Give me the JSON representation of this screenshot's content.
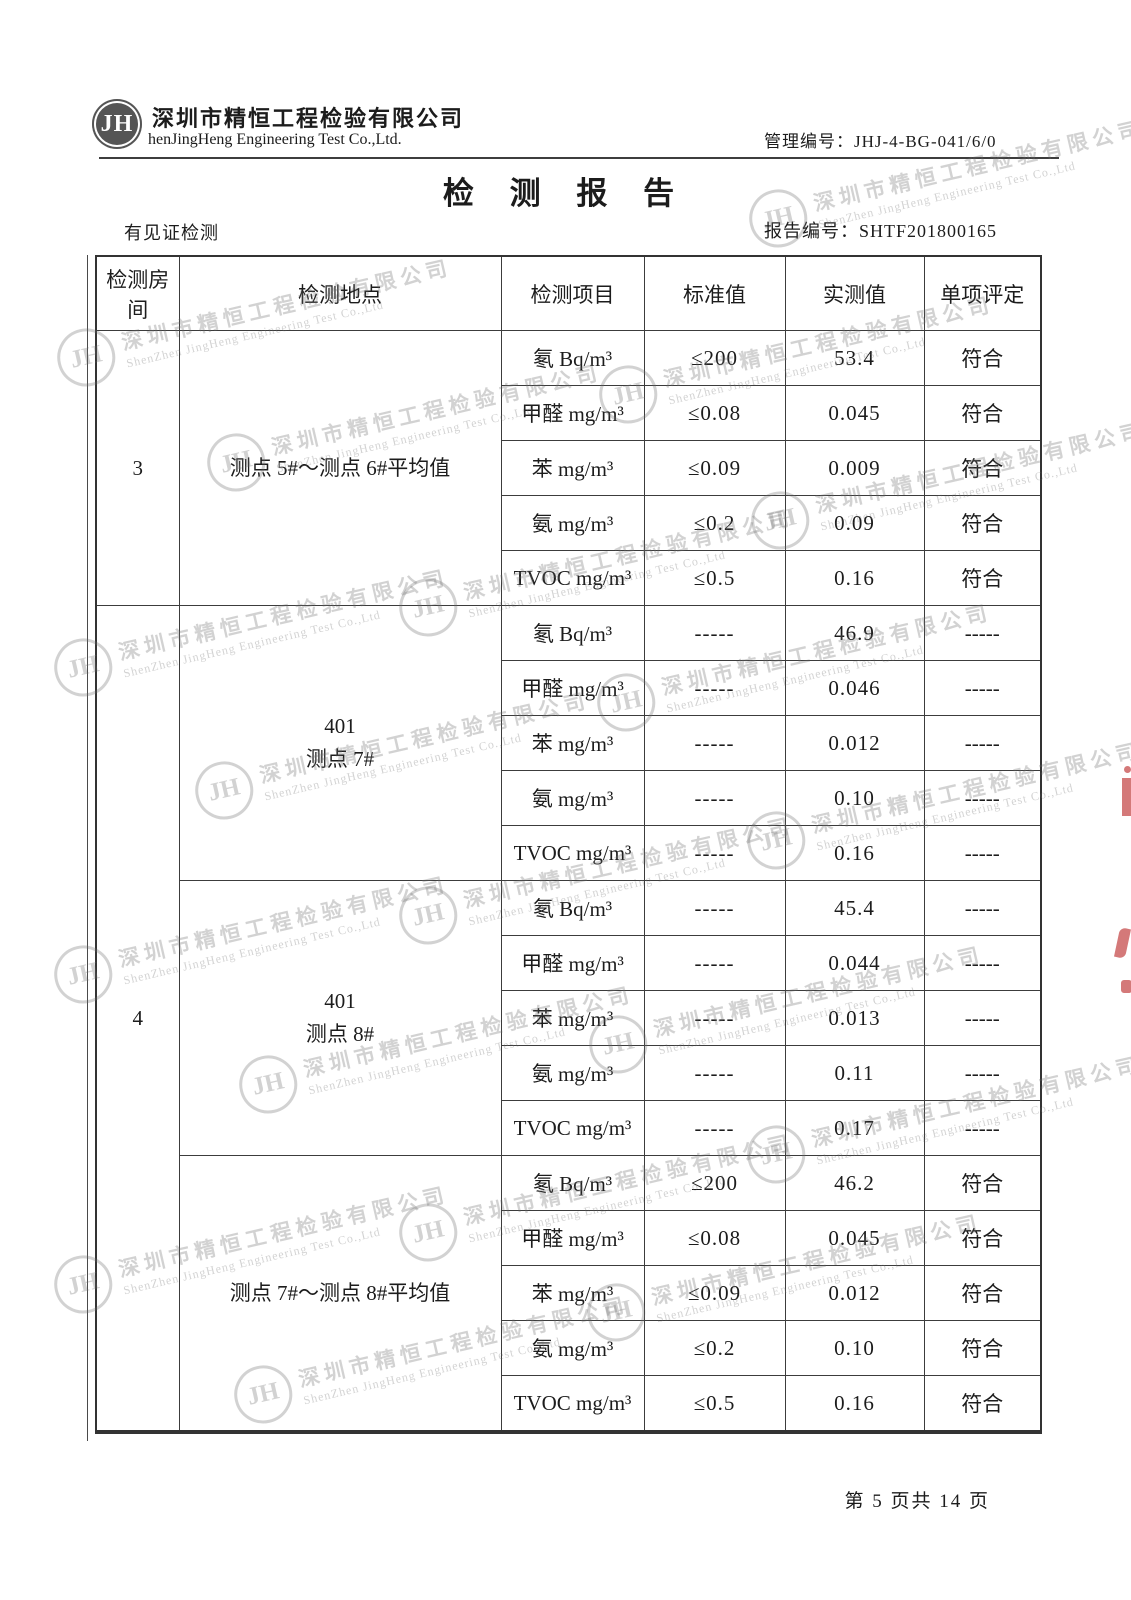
{
  "header": {
    "logo": "JH",
    "company_cn": "深圳市精恒工程检验有限公司",
    "company_en": "henJingHeng Engineering Test Co.,Ltd.",
    "management_label": "管理编号：",
    "management_no": "JHJ-4-BG-041/6/0",
    "title": "检 测 报 告",
    "witness": "有见证检测",
    "report_no_label": "报告编号：",
    "report_no": "SHTF201800165"
  },
  "table": {
    "headers": [
      "检测房间",
      "检测地点",
      "检测项目",
      "标准值",
      "实测值",
      "单项评定"
    ],
    "sections": [
      {
        "room": "3",
        "location": [
          "测点 5#～测点 6#平均值"
        ],
        "rows": [
          {
            "item": "氡 Bq/m³",
            "standard": "≤200",
            "measured": "53.4",
            "verdict": "符合"
          },
          {
            "item": "甲醛 mg/m³",
            "standard": "≤0.08",
            "measured": "0.045",
            "verdict": "符合"
          },
          {
            "item": "苯 mg/m³",
            "standard": "≤0.09",
            "measured": "0.009",
            "verdict": "符合"
          },
          {
            "item": "氨 mg/m³",
            "standard": "≤0.2",
            "measured": "0.09",
            "verdict": "符合"
          },
          {
            "item": "TVOC mg/m³",
            "standard": "≤0.5",
            "measured": "0.16",
            "verdict": "符合"
          }
        ]
      },
      {
        "room": "4",
        "location": [
          "401",
          "测点 7#"
        ],
        "rows": [
          {
            "item": "氡 Bq/m³",
            "standard": "-----",
            "measured": "46.9",
            "verdict": "-----"
          },
          {
            "item": "甲醛 mg/m³",
            "standard": "-----",
            "measured": "0.046",
            "verdict": "-----"
          },
          {
            "item": "苯 mg/m³",
            "standard": "-----",
            "measured": "0.012",
            "verdict": "-----"
          },
          {
            "item": "氨 mg/m³",
            "standard": "-----",
            "measured": "0.10",
            "verdict": "-----"
          },
          {
            "item": "TVOC mg/m³",
            "standard": "-----",
            "measured": "0.16",
            "verdict": "-----"
          }
        ]
      },
      {
        "room": "",
        "location": [
          "401",
          "测点 8#"
        ],
        "rows": [
          {
            "item": "氡 Bq/m³",
            "standard": "-----",
            "measured": "45.4",
            "verdict": "-----"
          },
          {
            "item": "甲醛 mg/m³",
            "standard": "-----",
            "measured": "0.044",
            "verdict": "-----"
          },
          {
            "item": "苯 mg/m³",
            "standard": "-----",
            "measured": "0.013",
            "verdict": "-----"
          },
          {
            "item": "氨 mg/m³",
            "standard": "-----",
            "measured": "0.11",
            "verdict": "-----"
          },
          {
            "item": "TVOC mg/m³",
            "standard": "-----",
            "measured": "0.17",
            "verdict": "-----"
          }
        ]
      },
      {
        "room": "",
        "location": [
          "测点 7#～测点 8#平均值"
        ],
        "rows": [
          {
            "item": "氡 Bq/m³",
            "standard": "≤200",
            "measured": "46.2",
            "verdict": "符合"
          },
          {
            "item": "甲醛 mg/m³",
            "standard": "≤0.08",
            "measured": "0.045",
            "verdict": "符合"
          },
          {
            "item": "苯 mg/m³",
            "standard": "≤0.09",
            "measured": "0.012",
            "verdict": "符合"
          },
          {
            "item": "氨 mg/m³",
            "standard": "≤0.2",
            "measured": "0.10",
            "verdict": "符合"
          },
          {
            "item": "TVOC mg/m³",
            "standard": "≤0.5",
            "measured": "0.16",
            "verdict": "符合"
          }
        ]
      }
    ]
  },
  "watermark": {
    "logo": "JH",
    "cn": "深圳市精恒工程检验有限公司",
    "en": "ShenZhen JingHeng Engineering Test Co.,Ltd"
  },
  "footer": {
    "page_info": "第 5 页共 14 页"
  }
}
